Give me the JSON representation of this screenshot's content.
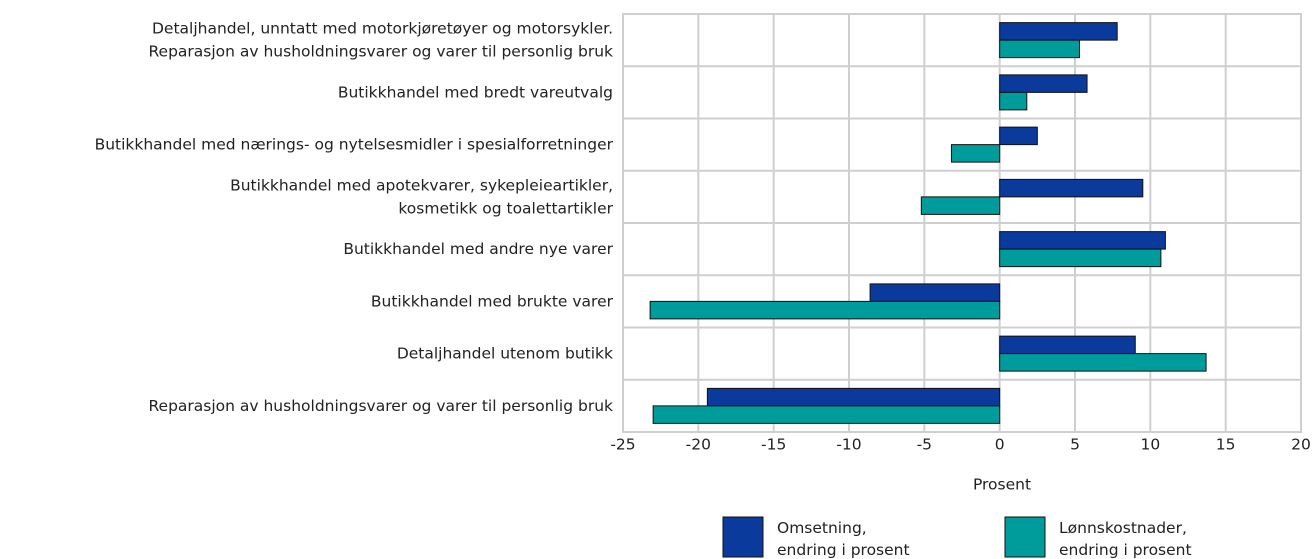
{
  "chart_data": {
    "type": "barh",
    "categories": [
      [
        "Detaljhandel, unntatt med motorkjøretøyer og motorsykler.",
        "Reparasjon av husholdningsvarer og varer til personlig bruk"
      ],
      [
        "Butikkhandel med bredt vareutvalg"
      ],
      [
        "Butikkhandel med nærings- og nytelsesmidler i spesialforretninger"
      ],
      [
        "Butikkhandel med apotekvarer, sykepleieartikler,",
        "kosmetikk og toalettartikler"
      ],
      [
        "Butikkhandel med andre nye varer"
      ],
      [
        "Butikkhandel med brukte varer"
      ],
      [
        "Detaljhandel utenom butikk"
      ],
      [
        "Reparasjon av husholdningsvarer og varer til personlig bruk"
      ]
    ],
    "series": [
      {
        "name": [
          "Omsetning,",
          "endring i prosent"
        ],
        "color": "#0a3a9c",
        "values": [
          7.8,
          5.8,
          2.5,
          9.5,
          11.0,
          -8.6,
          9.0,
          -19.4
        ]
      },
      {
        "name": [
          "Lønnskostnader,",
          "endring i prosent"
        ],
        "color": "#009c9c",
        "values": [
          5.3,
          1.8,
          -3.2,
          -5.2,
          10.7,
          -23.2,
          13.7,
          -23.0
        ]
      }
    ],
    "xlabel": "Prosent",
    "xlim": [
      -25,
      20
    ],
    "xticks": [
      -25,
      -20,
      -15,
      -10,
      -5,
      0,
      5,
      10,
      15,
      20
    ],
    "grid": true,
    "legend": "bottom"
  }
}
